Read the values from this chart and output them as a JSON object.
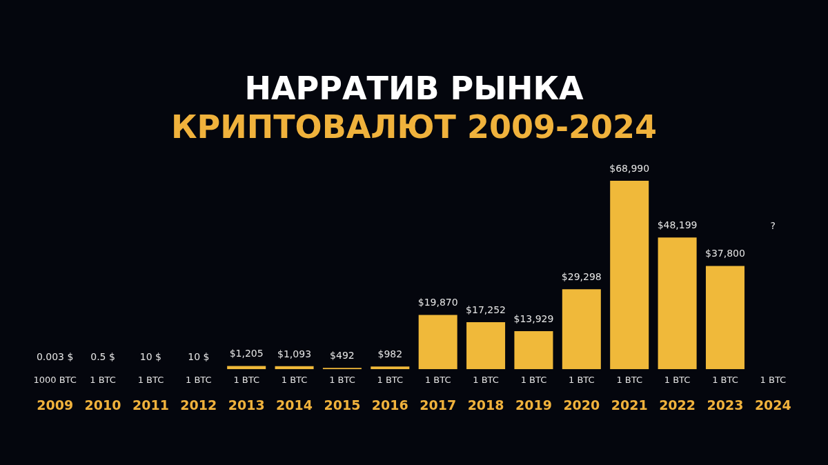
{
  "chart_data": {
    "type": "bar",
    "title": "НАРРАТИВ РЫНКА",
    "subtitle": "КРИПТОВАЛЮТ 2009-2024",
    "categories": [
      "2009",
      "2010",
      "2011",
      "2012",
      "2013",
      "2014",
      "2015",
      "2016",
      "2017",
      "2018",
      "2019",
      "2020",
      "2021",
      "2022",
      "2023",
      "2024"
    ],
    "values": [
      0.003,
      0.5,
      10,
      10,
      1205,
      1093,
      492,
      982,
      19870,
      17252,
      13929,
      29298,
      68990,
      48199,
      37800,
      null
    ],
    "value_labels": [
      "0.003 $",
      "0.5 $",
      "10 $",
      "10 $",
      "$1,205",
      "$1,093",
      "$492",
      "$982",
      "$19,870",
      "$17,252",
      "$13,929",
      "$29,298",
      "$68,990",
      "$48,199",
      "$37,800",
      "?"
    ],
    "color": "#f0b93a",
    "annotations": [
      "1000 BTC",
      "1 BTC",
      "1 BTC",
      "1 BTC",
      "1 BTC",
      "1 BTC",
      "1 BTC",
      "1 BTC",
      "1 BTC",
      "1 BTC",
      "1 BTC",
      "1 BTC",
      "1 BTC",
      "1 BTC",
      "1 BTC",
      "1 BTC"
    ],
    "legend": false,
    "tick_labels": "x"
  }
}
